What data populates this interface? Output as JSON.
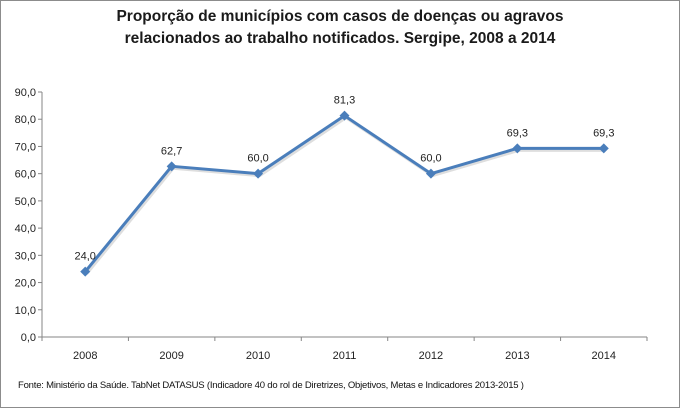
{
  "chart_data": {
    "type": "line",
    "title": "Proporção de municípios com casos de doenças ou agravos relacionados ao trabalho notificados. Sergipe, 2008 a 2014",
    "title_lines": [
      "Proporção de municípios com casos de doenças ou agravos",
      "relacionados ao trabalho notificados. Sergipe, 2008 a 2014"
    ],
    "categories": [
      "2008",
      "2009",
      "2010",
      "2011",
      "2012",
      "2013",
      "2014"
    ],
    "values": [
      24.0,
      62.7,
      60.0,
      81.3,
      60.0,
      69.3,
      69.3
    ],
    "data_labels": [
      "24,0",
      "62,7",
      "60,0",
      "81,3",
      "60,0",
      "69,3",
      "69,3"
    ],
    "ylim": [
      0,
      90
    ],
    "yticks": [
      "0,0",
      "10,0",
      "20,0",
      "30,0",
      "40,0",
      "50,0",
      "60,0",
      "70,0",
      "80,0",
      "90,0"
    ],
    "xlabel": "",
    "ylabel": "",
    "grid": false,
    "legend": "none",
    "series_color": "#4a7ebb",
    "source": "Fonte: Ministério da Saúde. TabNet DATASUS (Indicadore 40 do rol de Diretrizes, Objetivos, Metas e Indicadores 2013-2015 )"
  }
}
